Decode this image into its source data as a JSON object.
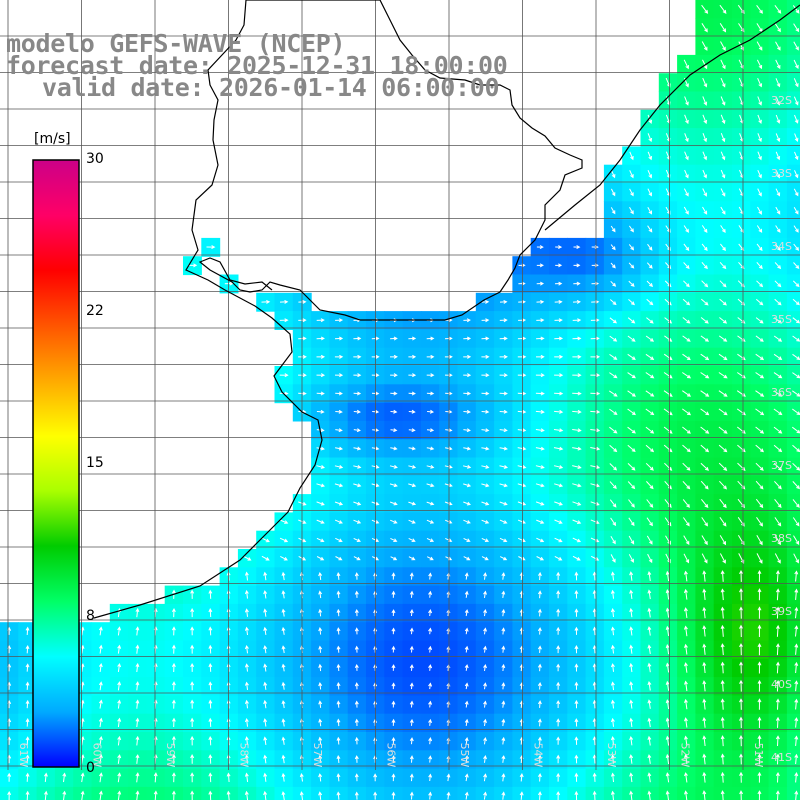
{
  "title": {
    "line1": "modelo GEFS-WAVE (NCEP)",
    "line2": "forecast date: 2025-12-31 18:00:00",
    "line3": "valid date: 2026-01-14 06:00:00"
  },
  "colorbar": {
    "unit": "[m/s]",
    "ticks": [
      "30",
      "22",
      "15",
      "8",
      "0"
    ],
    "tick_values": [
      30,
      22,
      15,
      8,
      0
    ],
    "range": [
      0,
      30
    ],
    "stops": [
      "#0000ff",
      "#00aaff",
      "#00ffff",
      "#00ff66",
      "#00cc00",
      "#aaff00",
      "#ffff00",
      "#ffaa00",
      "#ff5500",
      "#ff0000",
      "#ff0066",
      "#cc0088"
    ]
  },
  "map": {
    "lat_labels": [
      "32S",
      "33S",
      "34S",
      "35S",
      "36S",
      "37S",
      "38S",
      "39S",
      "40S",
      "41S"
    ],
    "lon_labels": [
      "61W",
      "60W",
      "59W",
      "58W",
      "57W",
      "56W",
      "55W",
      "54W",
      "53W",
      "52W",
      "51W"
    ],
    "colors": {
      "land": "#ffffff",
      "coast": "#000000",
      "grid": "#555555",
      "arrow": "#ffffff"
    }
  }
}
